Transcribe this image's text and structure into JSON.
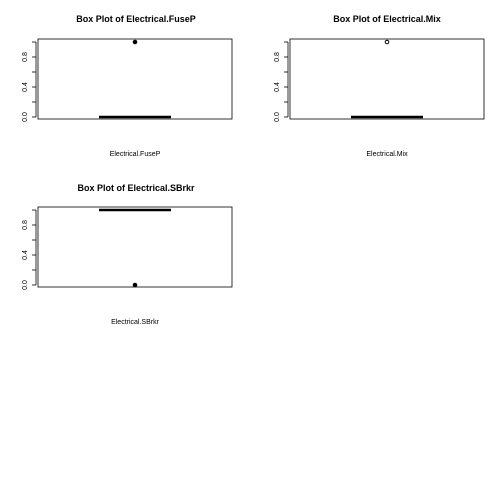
{
  "chart_data": [
    {
      "type": "box",
      "title": "Box Plot of  Electrical.FuseP",
      "xlabel": "Electrical.FuseP",
      "ylim": [
        0,
        1
      ],
      "yticks": [
        "0.0",
        "0.2",
        "0.4",
        "0.6",
        "0.8",
        "1.0"
      ],
      "ytick_labels": [
        "0.0",
        "0.4",
        "0.8"
      ],
      "box": {
        "min": 0,
        "q1": 0,
        "median": 0,
        "q3": 0,
        "max": 0
      },
      "outliers": [
        1
      ],
      "outlier_style": "filled"
    },
    {
      "type": "box",
      "title": "Box Plot of  Electrical.Mix",
      "xlabel": "Electrical.Mix",
      "ylim": [
        0,
        1
      ],
      "yticks": [
        "0.0",
        "0.2",
        "0.4",
        "0.6",
        "0.8",
        "1.0"
      ],
      "ytick_labels": [
        "0.0",
        "0.4",
        "0.8"
      ],
      "box": {
        "min": 0,
        "q1": 0,
        "median": 0,
        "q3": 0,
        "max": 0
      },
      "outliers": [
        1
      ],
      "outlier_style": "open"
    },
    {
      "type": "box",
      "title": "Box Plot of  Electrical.SBrkr",
      "xlabel": "Electrical.SBrkr",
      "ylim": [
        0,
        1
      ],
      "yticks": [
        "0.0",
        "0.2",
        "0.4",
        "0.6",
        "0.8",
        "1.0"
      ],
      "ytick_labels": [
        "0.0",
        "0.4",
        "0.8"
      ],
      "box": {
        "min": 1,
        "q1": 1,
        "median": 1,
        "q3": 1,
        "max": 1
      },
      "outliers": [
        0
      ],
      "outlier_style": "filled"
    }
  ]
}
